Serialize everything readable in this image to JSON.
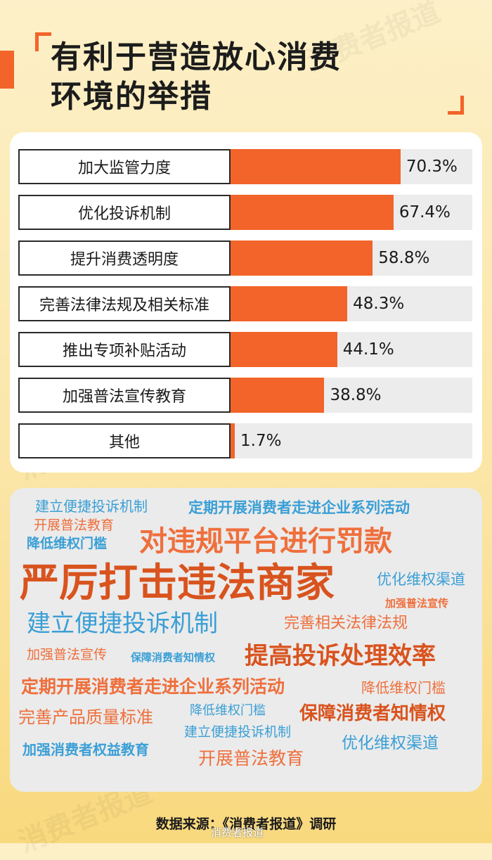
{
  "title": "有利于营造放心消费\n环境的举措",
  "watermark": "消费者报道",
  "chart_data": {
    "type": "bar",
    "orientation": "horizontal",
    "categories": [
      "加大监管力度",
      "优化投诉机制",
      "提升消费透明度",
      "完善法律法规及相关标准",
      "推出专项补贴活动",
      "加强普法宣传教育",
      "其他"
    ],
    "values": [
      70.3,
      67.4,
      58.8,
      48.3,
      44.1,
      38.8,
      1.7
    ],
    "value_labels": [
      "70.3%",
      "67.4%",
      "58.8%",
      "48.3%",
      "44.1%",
      "38.8%",
      "1.7%"
    ],
    "xlim": [
      0,
      100
    ],
    "bar_color": "#f2642a",
    "track_color": "#ececec"
  },
  "word_cloud": [
    {
      "text": "建立便捷投诉机制",
      "color": "#3a9fd6"
    },
    {
      "text": "定期开展消费者走进企业系列活动",
      "color": "#3a9fd6"
    },
    {
      "text": "开展普法教育",
      "color": "#ef6f3c"
    },
    {
      "text": "降低维权门槛",
      "color": "#3a9fd6"
    },
    {
      "text": "对违规平台进行罚款",
      "color": "#ef6f3c"
    },
    {
      "text": "严厉打击违法商家",
      "color": "#d9531e"
    },
    {
      "text": "优化维权渠道",
      "color": "#3a9fd6"
    },
    {
      "text": "加强普法宣传",
      "color": "#ef6f3c"
    },
    {
      "text": "建立便捷投诉机制",
      "color": "#3a9fd6"
    },
    {
      "text": "完善相关法律法规",
      "color": "#ef6f3c"
    },
    {
      "text": "加强普法宣传",
      "color": "#ef6f3c"
    },
    {
      "text": "保障消费者知情权",
      "color": "#3a9fd6"
    },
    {
      "text": "提高投诉处理效率",
      "color": "#d9531e"
    },
    {
      "text": "定期开展消费者走进企业系列活动",
      "color": "#ef6f3c"
    },
    {
      "text": "降低维权门槛",
      "color": "#ef6f3c"
    },
    {
      "text": "完善产品质量标准",
      "color": "#ef6f3c"
    },
    {
      "text": "降低维权门槛",
      "color": "#3a9fd6"
    },
    {
      "text": "保障消费者知情权",
      "color": "#d9531e"
    },
    {
      "text": "建立便捷投诉机制",
      "color": "#3a9fd6"
    },
    {
      "text": "加强消费者权益教育",
      "color": "#3a9fd6"
    },
    {
      "text": "优化维权渠道",
      "color": "#3a9fd6"
    },
    {
      "text": "开展普法教育",
      "color": "#ef6f3c"
    }
  ],
  "source": "数据来源：《消费者报道》调研",
  "weibo_mark": "消费者报道"
}
